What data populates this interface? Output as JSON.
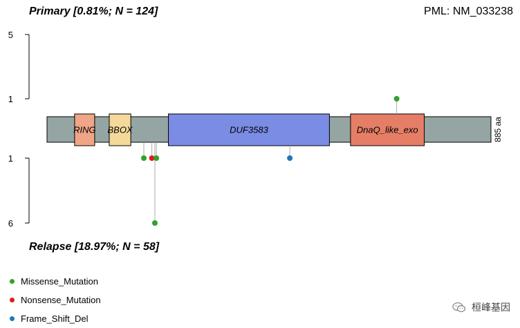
{
  "header": {
    "primary_title": "Primary [0.81%; N = 124]",
    "gene_label": "PML: NM_033238",
    "relapse_title": "Relapse [18.97%; N = 58]"
  },
  "chart_data": {
    "type": "lollipop",
    "protein_length_aa": 885,
    "protein_length_label": "885 aa",
    "domains": [
      {
        "name": "RING",
        "start": 55,
        "end": 95,
        "color": "#EFA586"
      },
      {
        "name": "BBOX",
        "start": 124,
        "end": 167,
        "color": "#F5D99B"
      },
      {
        "name": "DUF3583",
        "start": 242,
        "end": 563,
        "color": "#7B8CE5"
      },
      {
        "name": "DnaQ_like_exo",
        "start": 605,
        "end": 752,
        "color": "#E67E67"
      }
    ],
    "top_axis": {
      "ticks": [
        {
          "value": 1,
          "label": "1"
        },
        {
          "value": 5,
          "label": "5"
        }
      ],
      "max": 5
    },
    "bottom_axis": {
      "ticks": [
        {
          "value": 1,
          "label": "1"
        },
        {
          "value": 6,
          "label": "6"
        }
      ],
      "max": 6
    },
    "primary_mutations": [
      {
        "position": 697,
        "count": 1,
        "type": "Missense_Mutation"
      }
    ],
    "relapse_mutations": [
      {
        "position": 193,
        "count": 1,
        "type": "Missense_Mutation"
      },
      {
        "position": 209,
        "count": 1,
        "type": "Nonsense_Mutation"
      },
      {
        "position": 215,
        "count": 6,
        "type": "Missense_Mutation"
      },
      {
        "position": 218,
        "count": 1,
        "type": "Missense_Mutation"
      },
      {
        "position": 484,
        "count": 1,
        "type": "Frame_Shift_Del"
      }
    ],
    "legend": [
      {
        "label": "Missense_Mutation",
        "color": "#33A02C"
      },
      {
        "label": "Nonsense_Mutation",
        "color": "#E31A1C"
      },
      {
        "label": "Frame_Shift_Del",
        "color": "#1F78B4"
      }
    ],
    "backbone_color": "#95A5A3"
  },
  "watermark": {
    "text": "桓峰基因",
    "icon": "wechat-icon"
  }
}
